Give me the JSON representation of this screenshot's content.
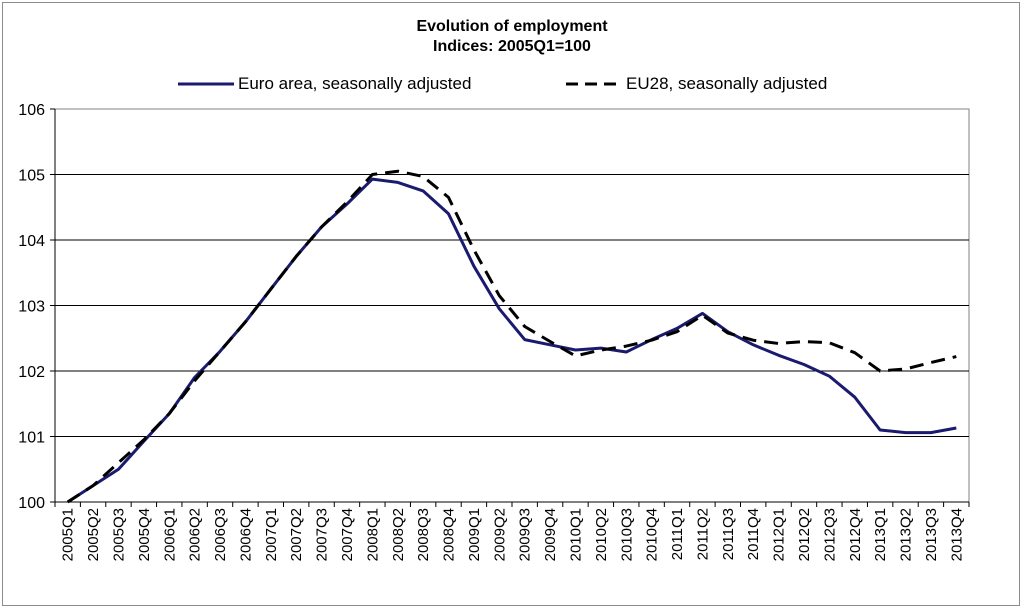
{
  "chart_data": {
    "type": "line",
    "title": "Evolution of employment",
    "subtitle": "Indices: 2005Q1=100",
    "xlabel": "",
    "ylabel": "",
    "ylim": [
      100,
      106
    ],
    "yticks": [
      100,
      101,
      102,
      103,
      104,
      105,
      106
    ],
    "grid": true,
    "legend_position": "top",
    "categories": [
      "2005Q1",
      "2005Q2",
      "2005Q3",
      "2005Q4",
      "2006Q1",
      "2006Q2",
      "2006Q3",
      "2006Q4",
      "2007Q1",
      "2007Q2",
      "2007Q3",
      "2007Q4",
      "2008Q1",
      "2008Q2",
      "2008Q3",
      "2008Q4",
      "2009Q1",
      "2009Q2",
      "2009Q3",
      "2009Q4",
      "2010Q1",
      "2010Q2",
      "2010Q3",
      "2010Q4",
      "2011Q1",
      "2011Q2",
      "2011Q3",
      "2011Q4",
      "2012Q1",
      "2012Q2",
      "2012Q3",
      "2012Q4",
      "2013Q1",
      "2013Q2",
      "2013Q3",
      "2013Q4"
    ],
    "series": [
      {
        "name": "Euro area, seasonally adjusted",
        "color": "#1a1a6e",
        "style": "solid",
        "values": [
          100.0,
          100.25,
          100.5,
          100.93,
          101.35,
          101.9,
          102.3,
          102.75,
          103.25,
          103.75,
          104.2,
          104.55,
          104.93,
          104.88,
          104.75,
          104.4,
          103.6,
          102.95,
          102.48,
          102.4,
          102.32,
          102.35,
          102.29,
          102.48,
          102.65,
          102.88,
          102.6,
          102.4,
          102.24,
          102.1,
          101.92,
          101.6,
          101.1,
          101.06,
          101.06,
          101.13
        ]
      },
      {
        "name": "EU28, seasonally adjusted",
        "color": "#000000",
        "style": "dashed",
        "values": [
          100.0,
          100.25,
          100.6,
          100.95,
          101.35,
          101.85,
          102.3,
          102.75,
          103.25,
          103.75,
          104.2,
          104.58,
          105.0,
          105.05,
          104.97,
          104.65,
          103.85,
          103.15,
          102.68,
          102.45,
          102.23,
          102.32,
          102.38,
          102.47,
          102.6,
          102.85,
          102.58,
          102.47,
          102.42,
          102.45,
          102.43,
          102.28,
          102.0,
          102.03,
          102.13,
          102.22
        ]
      }
    ]
  }
}
